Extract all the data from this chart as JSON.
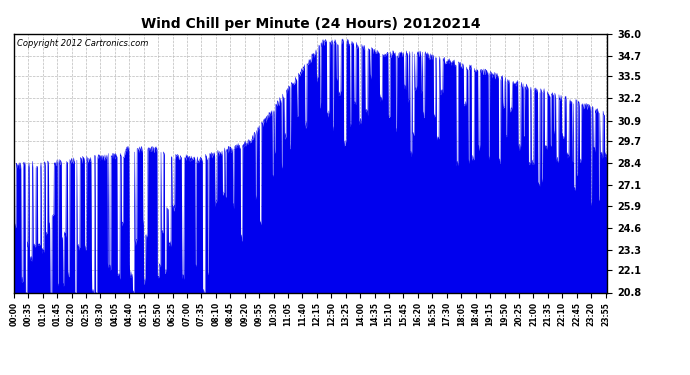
{
  "title": "Wind Chill per Minute (24 Hours) 20120214",
  "copyright_text": "Copyright 2012 Cartronics.com",
  "line_color": "#0000EE",
  "fill_color": "#0000EE",
  "background_color": "#ffffff",
  "grid_color": "#bbbbbb",
  "yticks": [
    20.8,
    22.1,
    23.3,
    24.6,
    25.9,
    27.1,
    28.4,
    29.7,
    30.9,
    32.2,
    33.5,
    34.7,
    36.0
  ],
  "ylim": [
    20.8,
    36.0
  ],
  "xtick_labels": [
    "00:00",
    "00:35",
    "01:10",
    "01:45",
    "02:20",
    "02:55",
    "03:30",
    "04:05",
    "04:40",
    "05:15",
    "05:50",
    "06:25",
    "07:00",
    "07:35",
    "08:10",
    "08:45",
    "09:20",
    "09:55",
    "10:30",
    "11:05",
    "11:40",
    "12:15",
    "12:50",
    "13:25",
    "14:00",
    "14:35",
    "15:10",
    "15:45",
    "16:20",
    "16:55",
    "17:30",
    "18:05",
    "18:40",
    "19:15",
    "19:50",
    "20:25",
    "21:00",
    "21:35",
    "22:10",
    "22:45",
    "23:20",
    "23:55"
  ],
  "figsize": [
    6.9,
    3.75
  ],
  "dpi": 100
}
